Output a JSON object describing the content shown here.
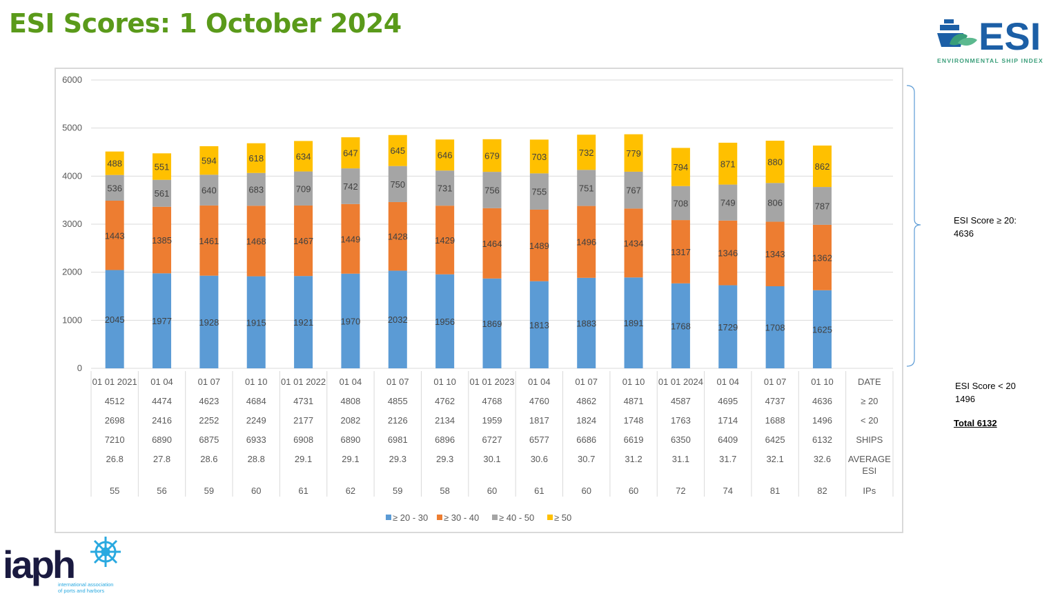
{
  "title": "ESI Scores: 1 October 2024",
  "logos": {
    "esi_text": "ESI",
    "esi_tagline": "ENVIRONMENTAL SHIP INDEX",
    "iaph_text": "iaph",
    "iaph_tagline_1": "international association",
    "iaph_tagline_2": "of ports and harbors"
  },
  "notes": {
    "above_20_label": "ESI Score  ≥ 20:",
    "above_20_value": "4636",
    "below_20_label": "ESI Score < 20",
    "below_20_value": "1496",
    "total": "Total 6132"
  },
  "chart_data": {
    "type": "bar",
    "stacked": true,
    "ylim": [
      0,
      6000
    ],
    "yticks": [
      0,
      1000,
      2000,
      3000,
      4000,
      5000,
      6000
    ],
    "grid": true,
    "legend_position": "bottom",
    "categories": [
      "01 01 2021",
      "01 04",
      "01 07",
      "01 10",
      "01 01 2022",
      "01 04",
      "01 07",
      "01 10",
      "01 01 2023",
      "01 04",
      "01 07",
      "01 10",
      "01 01 2024",
      "01 04",
      "01 07",
      "01 10"
    ],
    "series": [
      {
        "name": "≥ 20 - 30",
        "color": "#5b9bd5",
        "values": [
          2045,
          1977,
          1928,
          1915,
          1921,
          1970,
          2032,
          1956,
          1869,
          1813,
          1883,
          1891,
          1768,
          1729,
          1708,
          1625
        ]
      },
      {
        "name": "≥  30 - 40",
        "color": "#ed7d31",
        "values": [
          1443,
          1385,
          1461,
          1468,
          1467,
          1449,
          1428,
          1429,
          1464,
          1489,
          1496,
          1434,
          1317,
          1346,
          1343,
          1362
        ]
      },
      {
        "name": "≥  40 - 50",
        "color": "#a5a5a5",
        "values": [
          536,
          561,
          640,
          683,
          709,
          742,
          750,
          731,
          756,
          755,
          751,
          767,
          708,
          749,
          806,
          787
        ]
      },
      {
        "name": "≥  50",
        "color": "#ffc000",
        "values": [
          488,
          551,
          594,
          618,
          634,
          647,
          645,
          646,
          679,
          703,
          732,
          779,
          794,
          871,
          880,
          862
        ]
      }
    ],
    "table": {
      "row_labels": [
        "DATE",
        "≥ 20",
        "< 20",
        "SHIPS",
        "AVERAGE ESI",
        "IPs"
      ],
      "rows": [
        [
          "4512",
          "4474",
          "4623",
          "4684",
          "4731",
          "4808",
          "4855",
          "4762",
          "4768",
          "4760",
          "4862",
          "4871",
          "4587",
          "4695",
          "4737",
          "4636"
        ],
        [
          "2698",
          "2416",
          "2252",
          "2249",
          "2177",
          "2082",
          "2126",
          "2134",
          "1959",
          "1817",
          "1824",
          "1748",
          "1763",
          "1714",
          "1688",
          "1496"
        ],
        [
          "7210",
          "6890",
          "6875",
          "6933",
          "6908",
          "6890",
          "6981",
          "6896",
          "6727",
          "6577",
          "6686",
          "6619",
          "6350",
          "6409",
          "6425",
          "6132"
        ],
        [
          "26.8",
          "27.8",
          "28.6",
          "28.8",
          "29.1",
          "29.1",
          "29.3",
          "29.3",
          "30.1",
          "30.6",
          "30.7",
          "31.2",
          "31.1",
          "31.7",
          "32.1",
          "32.6"
        ],
        [
          "55",
          "56",
          "59",
          "60",
          "61",
          "62",
          "59",
          "58",
          "60",
          "61",
          "60",
          "60",
          "72",
          "74",
          "81",
          "82"
        ]
      ]
    }
  }
}
